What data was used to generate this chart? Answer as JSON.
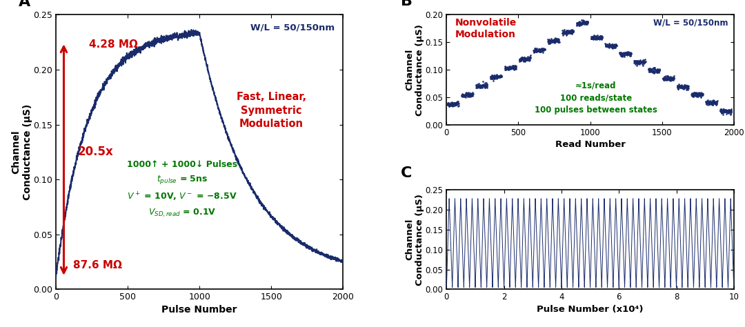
{
  "panel_A": {
    "title": "A",
    "xlabel": "Pulse Number",
    "ylabel": "Channel\nConductance (μS)",
    "xlim": [
      0,
      2000
    ],
    "ylim": [
      0,
      0.25
    ],
    "yticks": [
      0,
      0.05,
      0.1,
      0.15,
      0.2,
      0.25
    ],
    "xticks": [
      0,
      500,
      1000,
      1500,
      2000
    ],
    "line_color": "#1a2b6b",
    "g_min": 0.011,
    "g_max": 0.233,
    "annotations": {
      "wl": "W/L = 50/150nm",
      "wl_color": "#1a2b6b",
      "resistance_top": "4.28 MΩ",
      "resistance_bottom": "87.6 MΩ",
      "ratio": "20.5x",
      "arrow_color": "#cc0000",
      "fast_linear": "Fast, Linear,\nSymmetric\nModulation",
      "fast_color": "#cc0000",
      "pulses_color": "#007700"
    }
  },
  "panel_B": {
    "title": "B",
    "xlabel": "Read Number",
    "ylabel": "Channel\nConductance (μS)",
    "xlim": [
      0,
      2000
    ],
    "ylim": [
      0,
      0.2
    ],
    "yticks": [
      0,
      0.05,
      0.1,
      0.15,
      0.2
    ],
    "xticks": [
      0,
      500,
      1000,
      1500,
      2000
    ],
    "dot_color": "#1a2b6b",
    "annotations": {
      "wl": "W/L = 50/150nm",
      "wl_color": "#1a2b6b",
      "nonvolatile": "Nonvolatile\nModulation",
      "nonvolatile_color": "#cc0000",
      "reads_color": "#007700"
    }
  },
  "panel_C": {
    "title": "C",
    "xlabel": "Pulse Number (x10⁴)",
    "ylabel": "Channel\nConductance (μS)",
    "xlim": [
      0,
      100000
    ],
    "ylim": [
      0,
      0.25
    ],
    "yticks": [
      0,
      0.05,
      0.1,
      0.15,
      0.2,
      0.25
    ],
    "xticks": [
      0,
      20000,
      40000,
      60000,
      80000,
      100000
    ],
    "xtick_labels": [
      "0",
      "2",
      "4",
      "6",
      "8",
      "10"
    ],
    "line_color": "#1a2b6b",
    "g_low": 0.005,
    "g_high": 0.228,
    "n_cycles": 50
  },
  "background_color": "#ffffff"
}
